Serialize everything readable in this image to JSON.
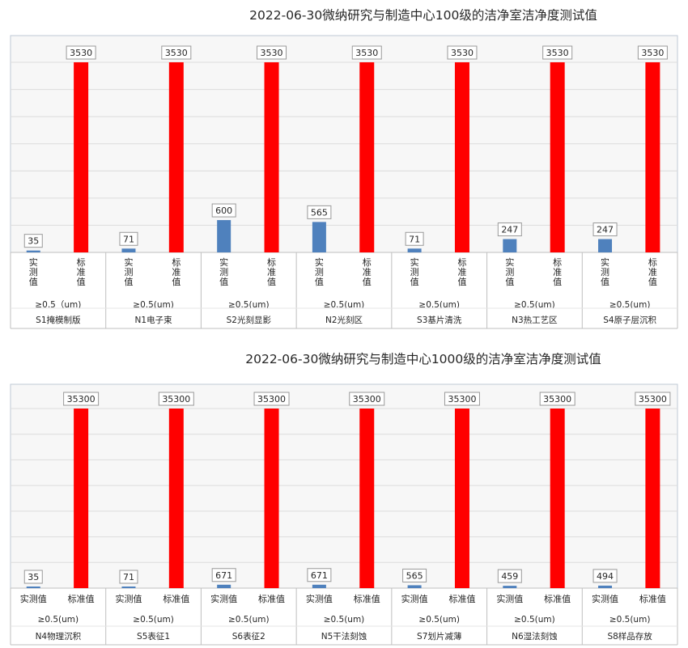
{
  "chart_data": [
    {
      "type": "bar",
      "title": "2022-06-30微纳研究与制造中心100级的洁净室洁净度测试值",
      "bar_labels": [
        "实测值",
        "标准值"
      ],
      "categories": [
        {
          "particle": "≥0.5（um)",
          "area": "S1掩模制版"
        },
        {
          "particle": "≥0.5(um)",
          "area": "N1电子束"
        },
        {
          "particle": "≥0.5(um)",
          "area": "S2光刻显影"
        },
        {
          "particle": "≥0.5(um)",
          "area": "N2光刻区"
        },
        {
          "particle": "≥0.5(um)",
          "area": "S3基片清洗"
        },
        {
          "particle": "≥0.5(um)",
          "area": "N3热工艺区"
        },
        {
          "particle": "≥0.5(um)",
          "area": "S4原子层沉积"
        }
      ],
      "series": [
        {
          "name": "实测值",
          "values": [
            35,
            71,
            600,
            565,
            71,
            247,
            247
          ],
          "color": "#4f81bd"
        },
        {
          "name": "标准值",
          "values": [
            3530,
            3530,
            3530,
            3530,
            3530,
            3530,
            3530
          ],
          "color": "#ff0000"
        }
      ],
      "labels_vertical": true,
      "ylim": [
        0,
        3530
      ],
      "grid": true
    },
    {
      "type": "bar",
      "title": "2022-06-30微纳研究与制造中心1000级的洁净室洁净度测试值",
      "bar_labels": [
        "实测值",
        "标准值"
      ],
      "categories": [
        {
          "particle": "≥0.5(um)",
          "area": "N4物理沉积"
        },
        {
          "particle": "≥0.5(um)",
          "area": "S5表征1"
        },
        {
          "particle": "≥0.5(um)",
          "area": "S6表征2"
        },
        {
          "particle": "≥0.5(um)",
          "area": "N5干法刻蚀"
        },
        {
          "particle": "≥0.5(um)",
          "area": "S7划片减薄"
        },
        {
          "particle": "≥0.5(um)",
          "area": "N6湿法刻蚀"
        },
        {
          "particle": "≥0.5(um)",
          "area": "S8样品存放"
        }
      ],
      "series": [
        {
          "name": "实测值",
          "values": [
            35,
            71,
            671,
            671,
            565,
            459,
            494
          ],
          "color": "#4f81bd"
        },
        {
          "name": "标准值",
          "values": [
            35300,
            35300,
            35300,
            35300,
            35300,
            35300,
            35300
          ],
          "color": "#ff0000"
        }
      ],
      "labels_vertical": false,
      "ylim": [
        0,
        35300
      ],
      "grid": true
    }
  ]
}
